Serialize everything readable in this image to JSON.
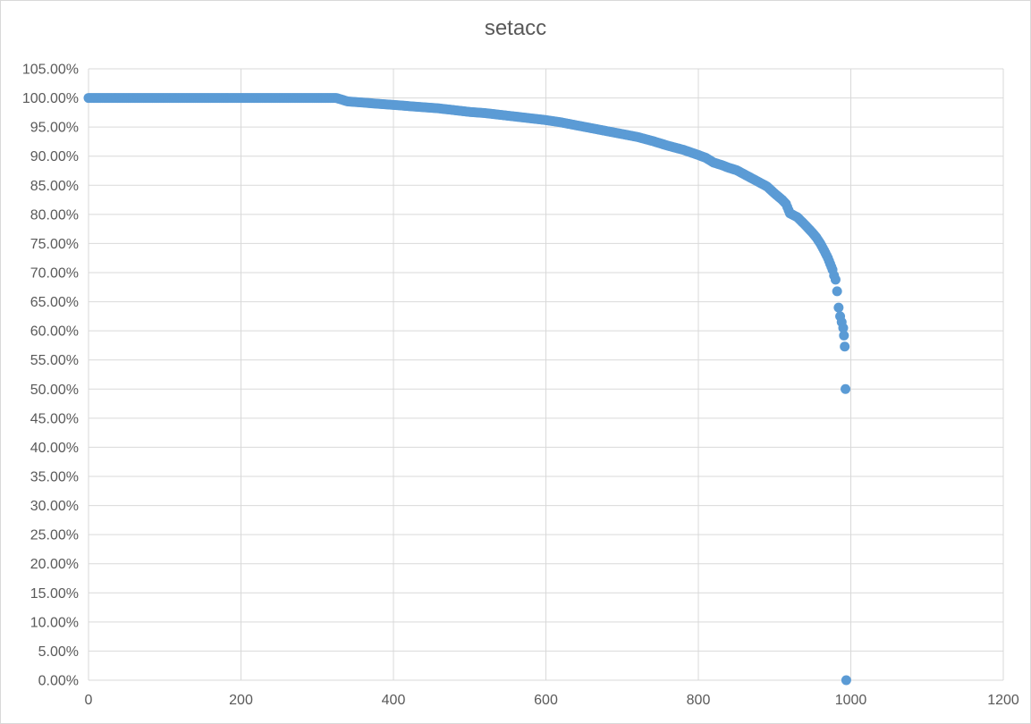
{
  "chart_data": {
    "type": "scatter",
    "title": "setacc",
    "xlabel": "",
    "ylabel": "",
    "xlim": [
      0,
      1200
    ],
    "ylim": [
      0,
      1.05
    ],
    "x_ticks": [
      0,
      200,
      400,
      600,
      800,
      1000,
      1200
    ],
    "y_ticks": [
      0,
      0.05,
      0.1,
      0.15,
      0.2,
      0.25,
      0.3,
      0.35,
      0.4,
      0.45,
      0.5,
      0.55,
      0.6,
      0.65,
      0.7,
      0.75,
      0.8,
      0.85,
      0.9,
      0.95,
      1.0,
      1.05
    ],
    "x_tick_labels": [
      "0",
      "200",
      "400",
      "600",
      "800",
      "1000",
      "1200"
    ],
    "y_tick_labels": [
      "0.00%",
      "5.00%",
      "10.00%",
      "15.00%",
      "20.00%",
      "25.00%",
      "30.00%",
      "35.00%",
      "40.00%",
      "45.00%",
      "50.00%",
      "55.00%",
      "60.00%",
      "65.00%",
      "70.00%",
      "75.00%",
      "80.00%",
      "85.00%",
      "90.00%",
      "95.00%",
      "100.00%",
      "105.00%"
    ],
    "grid": true,
    "legend": "none",
    "marker_color": "#5b9bd5",
    "series": [
      {
        "points": [
          [
            0,
            1.0
          ],
          [
            50,
            1.0
          ],
          [
            100,
            1.0
          ],
          [
            150,
            1.0
          ],
          [
            200,
            1.0
          ],
          [
            250,
            1.0
          ],
          [
            300,
            1.0
          ],
          [
            325,
            1.0
          ],
          [
            330,
            0.998
          ],
          [
            340,
            0.994
          ],
          [
            360,
            0.992
          ],
          [
            380,
            0.99
          ],
          [
            400,
            0.988
          ],
          [
            420,
            0.986
          ],
          [
            440,
            0.984
          ],
          [
            460,
            0.982
          ],
          [
            480,
            0.979
          ],
          [
            500,
            0.976
          ],
          [
            520,
            0.974
          ],
          [
            540,
            0.971
          ],
          [
            560,
            0.968
          ],
          [
            580,
            0.965
          ],
          [
            600,
            0.962
          ],
          [
            620,
            0.958
          ],
          [
            640,
            0.953
          ],
          [
            660,
            0.948
          ],
          [
            680,
            0.943
          ],
          [
            700,
            0.938
          ],
          [
            720,
            0.933
          ],
          [
            740,
            0.926
          ],
          [
            760,
            0.918
          ],
          [
            780,
            0.911
          ],
          [
            800,
            0.902
          ],
          [
            810,
            0.897
          ],
          [
            820,
            0.889
          ],
          [
            830,
            0.885
          ],
          [
            840,
            0.88
          ],
          [
            850,
            0.876
          ],
          [
            860,
            0.869
          ],
          [
            870,
            0.862
          ],
          [
            880,
            0.855
          ],
          [
            890,
            0.848
          ],
          [
            900,
            0.836
          ],
          [
            910,
            0.825
          ],
          [
            915,
            0.818
          ],
          [
            920,
            0.802
          ],
          [
            930,
            0.795
          ],
          [
            940,
            0.782
          ],
          [
            950,
            0.768
          ],
          [
            955,
            0.76
          ],
          [
            960,
            0.75
          ],
          [
            965,
            0.738
          ],
          [
            970,
            0.725
          ],
          [
            973,
            0.715
          ],
          [
            976,
            0.705
          ],
          [
            978,
            0.695
          ],
          [
            980,
            0.688
          ],
          [
            982,
            0.668
          ],
          [
            984,
            0.64
          ],
          [
            986,
            0.625
          ],
          [
            988,
            0.615
          ],
          [
            990,
            0.605
          ],
          [
            991,
            0.592
          ],
          [
            992,
            0.573
          ],
          [
            993,
            0.5
          ],
          [
            994,
            0.0
          ]
        ]
      }
    ]
  }
}
